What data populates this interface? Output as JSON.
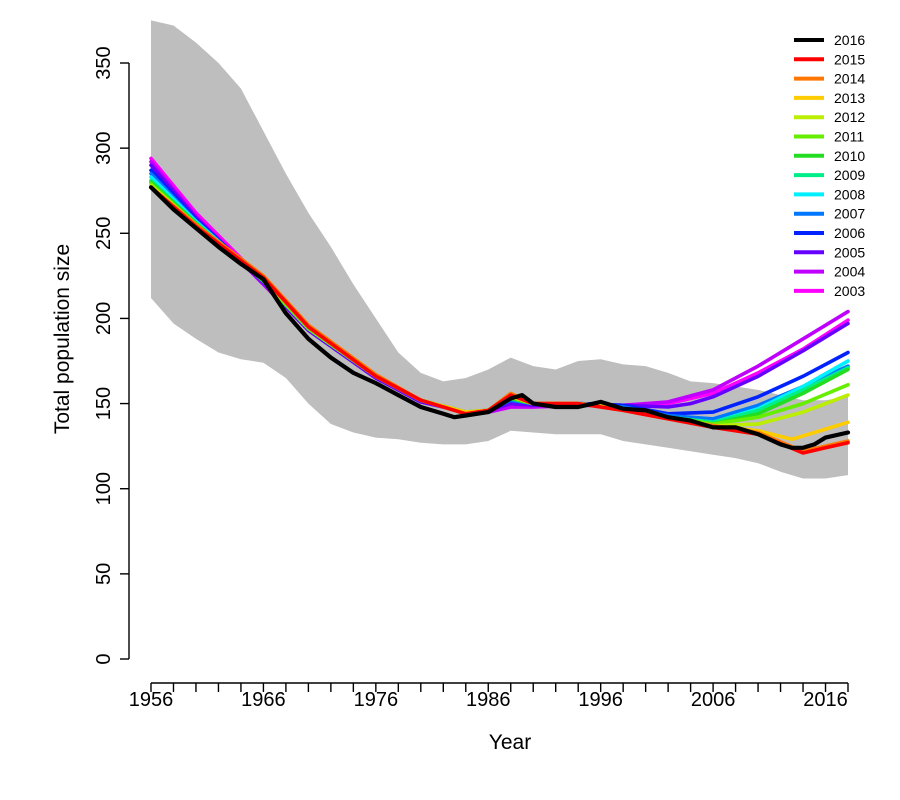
{
  "chart_data": {
    "type": "line",
    "title": "",
    "xlabel": "Year",
    "ylabel": "Total population size",
    "xlim": [
      1956,
      2018
    ],
    "ylim": [
      0,
      350
    ],
    "x_ticks": [
      1956,
      1966,
      1976,
      1986,
      1996,
      2006,
      2016
    ],
    "y_ticks": [
      0,
      50,
      100,
      150,
      200,
      250,
      300,
      350
    ],
    "grid": false,
    "legend_position": "top-right",
    "band": {
      "color": "#bebebe",
      "x": [
        1956,
        1958,
        1960,
        1962,
        1964,
        1966,
        1968,
        1970,
        1972,
        1974,
        1976,
        1978,
        1980,
        1982,
        1984,
        1986,
        1988,
        1990,
        1992,
        1994,
        1996,
        1998,
        2000,
        2002,
        2004,
        2006,
        2008,
        2010,
        2012,
        2014,
        2016,
        2018
      ],
      "upper": [
        375,
        372,
        362,
        350,
        335,
        310,
        285,
        262,
        242,
        220,
        200,
        180,
        168,
        163,
        165,
        170,
        177,
        172,
        170,
        175,
        176,
        173,
        172,
        168,
        163,
        162,
        160,
        158,
        155,
        152,
        152,
        154
      ],
      "lower": [
        212,
        197,
        188,
        180,
        176,
        174,
        165,
        150,
        138,
        133,
        130,
        129,
        127,
        126,
        126,
        128,
        134,
        133,
        132,
        132,
        132,
        128,
        126,
        124,
        122,
        120,
        118,
        115,
        110,
        106,
        106,
        108
      ]
    },
    "series": [
      {
        "name": "2003",
        "color": "#ff00ff",
        "x": [
          1956,
          1960,
          1966,
          1970,
          1976,
          1980,
          1984,
          1986,
          1988,
          1990,
          1994,
          1998,
          2002,
          2006,
          2010,
          2014,
          2018
        ],
        "values": [
          294,
          262,
          222,
          194,
          166,
          152,
          145,
          145,
          148,
          148,
          149,
          149,
          150,
          156,
          168,
          182,
          199
        ]
      },
      {
        "name": "2004",
        "color": "#bf00ff",
        "x": [
          1956,
          1960,
          1966,
          1970,
          1976,
          1980,
          1984,
          1986,
          1988,
          1990,
          1994,
          1998,
          2002,
          2006,
          2010,
          2014,
          2018
        ],
        "values": [
          292,
          260,
          220,
          193,
          165,
          151,
          145,
          145,
          148,
          148,
          149,
          149,
          151,
          158,
          172,
          188,
          204
        ]
      },
      {
        "name": "2005",
        "color": "#6600ff",
        "x": [
          1956,
          1960,
          1966,
          1970,
          1976,
          1980,
          1984,
          1986,
          1988,
          1990,
          1994,
          1998,
          2002,
          2004,
          2006,
          2010,
          2014,
          2018
        ],
        "values": [
          290,
          259,
          221,
          193,
          165,
          151,
          145,
          146,
          150,
          149,
          150,
          149,
          148,
          150,
          154,
          166,
          181,
          197
        ]
      },
      {
        "name": "2006",
        "color": "#0022ff",
        "x": [
          1956,
          1960,
          1966,
          1970,
          1976,
          1980,
          1984,
          1986,
          1988,
          1990,
          1994,
          1998,
          2002,
          2006,
          2010,
          2014,
          2018
        ],
        "values": [
          287,
          258,
          222,
          194,
          166,
          152,
          145,
          146,
          152,
          150,
          150,
          149,
          144,
          145,
          154,
          166,
          180
        ]
      },
      {
        "name": "2007",
        "color": "#0077ff",
        "x": [
          1956,
          1960,
          1966,
          1970,
          1976,
          1980,
          1984,
          1986,
          1988,
          1990,
          1994,
          1998,
          2002,
          2006,
          2010,
          2014,
          2018
        ],
        "values": [
          285,
          257,
          222,
          194,
          166,
          152,
          145,
          146,
          152,
          150,
          150,
          148,
          143,
          141,
          149,
          160,
          172
        ]
      },
      {
        "name": "2008",
        "color": "#00f0ff",
        "x": [
          1956,
          1960,
          1966,
          1970,
          1976,
          1980,
          1984,
          1986,
          1988,
          1990,
          1994,
          1998,
          2002,
          2006,
          2010,
          2014,
          2018
        ],
        "values": [
          283,
          257,
          222,
          194,
          166,
          152,
          145,
          146,
          153,
          150,
          150,
          147,
          142,
          139,
          147,
          160,
          175
        ]
      },
      {
        "name": "2009",
        "color": "#00ee88",
        "x": [
          1956,
          1960,
          1966,
          1970,
          1976,
          1980,
          1984,
          1986,
          1988,
          1990,
          1994,
          1998,
          2002,
          2006,
          2010,
          2014,
          2018
        ],
        "values": [
          281,
          256,
          222,
          194,
          166,
          152,
          145,
          146,
          153,
          150,
          150,
          147,
          142,
          139,
          146,
          158,
          171
        ]
      },
      {
        "name": "2010",
        "color": "#22dd22",
        "x": [
          1956,
          1960,
          1966,
          1970,
          1976,
          1980,
          1984,
          1986,
          1988,
          1990,
          1994,
          1998,
          2002,
          2006,
          2010,
          2014,
          2018
        ],
        "values": [
          280,
          256,
          222,
          194,
          166,
          152,
          145,
          146,
          153,
          150,
          150,
          147,
          142,
          138,
          144,
          156,
          170
        ]
      },
      {
        "name": "2011",
        "color": "#66ee00",
        "x": [
          1956,
          1960,
          1966,
          1970,
          1976,
          1980,
          1984,
          1986,
          1988,
          1990,
          1994,
          1998,
          2002,
          2006,
          2010,
          2014,
          2018
        ],
        "values": [
          279,
          255,
          223,
          194,
          166,
          152,
          145,
          146,
          154,
          150,
          150,
          147,
          142,
          138,
          142,
          150,
          161
        ]
      },
      {
        "name": "2012",
        "color": "#bbee00",
        "x": [
          1956,
          1960,
          1966,
          1970,
          1976,
          1980,
          1984,
          1986,
          1988,
          1990,
          1994,
          1998,
          2002,
          2006,
          2010,
          2014,
          2018
        ],
        "values": [
          278,
          255,
          223,
          195,
          166,
          152,
          145,
          146,
          154,
          150,
          150,
          147,
          142,
          137,
          138,
          145,
          155
        ]
      },
      {
        "name": "2013",
        "color": "#ffcc00",
        "x": [
          1956,
          1960,
          1966,
          1970,
          1976,
          1980,
          1984,
          1986,
          1988,
          1990,
          1994,
          1998,
          2002,
          2006,
          2010,
          2013,
          2016,
          2018
        ],
        "values": [
          277,
          255,
          224,
          195,
          166,
          152,
          145,
          146,
          155,
          150,
          150,
          147,
          141,
          137,
          134,
          129,
          135,
          139
        ]
      },
      {
        "name": "2014",
        "color": "#ff7700",
        "x": [
          1956,
          1960,
          1966,
          1970,
          1976,
          1980,
          1984,
          1986,
          1988,
          1990,
          1994,
          1998,
          2002,
          2006,
          2010,
          2014,
          2016,
          2018
        ],
        "values": [
          277,
          255,
          225,
          196,
          167,
          152,
          144,
          146,
          156,
          150,
          150,
          146,
          141,
          137,
          133,
          122,
          125,
          128
        ]
      },
      {
        "name": "2015",
        "color": "#ff0000",
        "x": [
          1956,
          1960,
          1966,
          1970,
          1976,
          1980,
          1984,
          1986,
          1988,
          1990,
          1994,
          1998,
          2002,
          2006,
          2010,
          2014,
          2016,
          2018
        ],
        "values": [
          277,
          254,
          224,
          195,
          166,
          152,
          144,
          146,
          155,
          150,
          150,
          146,
          141,
          136,
          132,
          121,
          124,
          127
        ]
      },
      {
        "name": "2016",
        "color": "#000000",
        "x": [
          1956,
          1958,
          1960,
          1962,
          1964,
          1966,
          1968,
          1970,
          1972,
          1974,
          1976,
          1978,
          1980,
          1982,
          1983,
          1984,
          1986,
          1988,
          1989,
          1990,
          1992,
          1994,
          1996,
          1998,
          2000,
          2002,
          2004,
          2006,
          2008,
          2010,
          2012,
          2013,
          2014,
          2015,
          2016,
          2018
        ],
        "values": [
          277,
          264,
          253,
          242,
          232,
          223,
          203,
          188,
          177,
          168,
          162,
          155,
          148,
          144,
          142,
          143,
          145,
          153,
          155,
          150,
          148,
          148,
          151,
          147,
          146,
          142,
          140,
          136,
          136,
          132,
          126,
          124,
          124,
          126,
          130,
          133
        ]
      }
    ]
  }
}
